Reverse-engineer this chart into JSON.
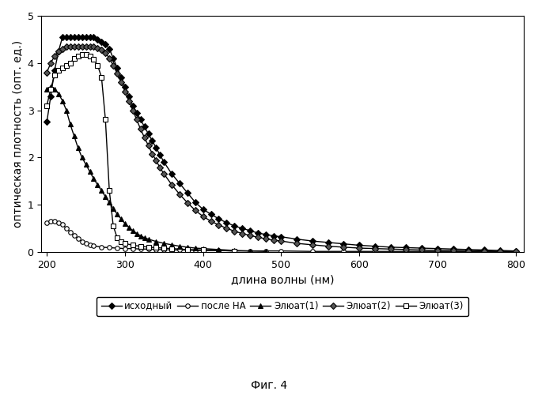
{
  "title": "",
  "xlabel": "длина волны (нм)",
  "ylabel": "оптическая плотность (опт. ед.)",
  "xlim": [
    193,
    810
  ],
  "ylim": [
    0,
    5
  ],
  "yticks": [
    0,
    1,
    2,
    3,
    4,
    5
  ],
  "xticks": [
    200,
    300,
    400,
    500,
    600,
    700,
    800
  ],
  "caption": "Фиг. 4",
  "legend": [
    "исходный",
    "после НА",
    "Элюат(1)",
    "Элюат(2)",
    "Элюат(3)"
  ],
  "series": {
    "ishodny": {
      "x": [
        200,
        205,
        210,
        215,
        220,
        225,
        230,
        235,
        240,
        245,
        250,
        255,
        260,
        265,
        270,
        275,
        280,
        285,
        290,
        295,
        300,
        305,
        310,
        315,
        320,
        325,
        330,
        335,
        340,
        345,
        350,
        360,
        370,
        380,
        390,
        400,
        410,
        420,
        430,
        440,
        450,
        460,
        470,
        480,
        490,
        500,
        520,
        540,
        560,
        580,
        600,
        620,
        640,
        660,
        680,
        700,
        720,
        740,
        760,
        780,
        800
      ],
      "y": [
        2.75,
        3.3,
        3.85,
        4.25,
        4.55,
        4.55,
        4.55,
        4.55,
        4.55,
        4.55,
        4.55,
        4.55,
        4.55,
        4.5,
        4.45,
        4.4,
        4.3,
        4.1,
        3.9,
        3.7,
        3.5,
        3.3,
        3.1,
        2.95,
        2.8,
        2.65,
        2.5,
        2.35,
        2.2,
        2.05,
        1.9,
        1.65,
        1.45,
        1.25,
        1.05,
        0.9,
        0.8,
        0.7,
        0.62,
        0.55,
        0.5,
        0.45,
        0.4,
        0.37,
        0.34,
        0.32,
        0.27,
        0.23,
        0.2,
        0.17,
        0.14,
        0.12,
        0.1,
        0.09,
        0.08,
        0.07,
        0.06,
        0.05,
        0.04,
        0.03,
        0.02
      ],
      "marker": "D",
      "markersize": 4,
      "markerfacecolor": "#000000",
      "markeredgecolor": "#000000",
      "color": "#000000",
      "linestyle": "-",
      "linewidth": 1.0
    },
    "posle_na": {
      "x": [
        200,
        205,
        210,
        215,
        220,
        225,
        230,
        235,
        240,
        245,
        250,
        255,
        260,
        270,
        280,
        290,
        300,
        310,
        320,
        330,
        340,
        350,
        360,
        370,
        380,
        390,
        400,
        420,
        440,
        460,
        480,
        500,
        540,
        580,
        620,
        660,
        700,
        740,
        780,
        800
      ],
      "y": [
        0.62,
        0.65,
        0.65,
        0.62,
        0.58,
        0.5,
        0.42,
        0.35,
        0.28,
        0.22,
        0.18,
        0.15,
        0.13,
        0.1,
        0.09,
        0.08,
        0.07,
        0.07,
        0.06,
        0.06,
        0.05,
        0.05,
        0.04,
        0.04,
        0.04,
        0.03,
        0.03,
        0.03,
        0.02,
        0.02,
        0.02,
        0.02,
        0.01,
        0.01,
        0.01,
        0.01,
        0.01,
        0.01,
        0.01,
        0.01
      ],
      "marker": "o",
      "markersize": 4,
      "markerfacecolor": "white",
      "markeredgecolor": "#000000",
      "color": "#000000",
      "linestyle": "-",
      "linewidth": 1.0
    },
    "elyuat1": {
      "x": [
        200,
        205,
        210,
        215,
        220,
        225,
        230,
        235,
        240,
        245,
        250,
        255,
        260,
        265,
        270,
        275,
        280,
        285,
        290,
        295,
        300,
        305,
        310,
        315,
        320,
        325,
        330,
        340,
        350,
        360,
        370,
        380,
        390,
        400,
        420,
        440,
        460,
        480
      ],
      "y": [
        3.45,
        3.5,
        3.45,
        3.35,
        3.2,
        3.0,
        2.7,
        2.45,
        2.2,
        2.0,
        1.85,
        1.7,
        1.55,
        1.42,
        1.3,
        1.17,
        1.05,
        0.92,
        0.8,
        0.7,
        0.6,
        0.52,
        0.45,
        0.39,
        0.34,
        0.3,
        0.27,
        0.22,
        0.18,
        0.15,
        0.12,
        0.1,
        0.08,
        0.07,
        0.05,
        0.03,
        0.02,
        0.01
      ],
      "marker": "^",
      "markersize": 5,
      "markerfacecolor": "#000000",
      "markeredgecolor": "#000000",
      "color": "#000000",
      "linestyle": "-",
      "linewidth": 1.0
    },
    "elyuat2": {
      "x": [
        200,
        205,
        210,
        215,
        220,
        225,
        230,
        235,
        240,
        245,
        250,
        255,
        260,
        265,
        270,
        275,
        280,
        285,
        290,
        295,
        300,
        305,
        310,
        315,
        320,
        325,
        330,
        335,
        340,
        345,
        350,
        360,
        370,
        380,
        390,
        400,
        410,
        420,
        430,
        440,
        450,
        460,
        470,
        480,
        490,
        500,
        520,
        540,
        560,
        580,
        600,
        620,
        640,
        660,
        680,
        700,
        720,
        740,
        760,
        780,
        800
      ],
      "y": [
        3.8,
        4.0,
        4.15,
        4.25,
        4.3,
        4.35,
        4.35,
        4.35,
        4.35,
        4.35,
        4.35,
        4.35,
        4.35,
        4.32,
        4.28,
        4.22,
        4.1,
        3.95,
        3.78,
        3.6,
        3.4,
        3.2,
        3.0,
        2.8,
        2.6,
        2.42,
        2.25,
        2.08,
        1.93,
        1.78,
        1.65,
        1.42,
        1.22,
        1.04,
        0.88,
        0.75,
        0.65,
        0.57,
        0.5,
        0.44,
        0.39,
        0.35,
        0.31,
        0.28,
        0.25,
        0.23,
        0.18,
        0.15,
        0.12,
        0.1,
        0.08,
        0.07,
        0.06,
        0.05,
        0.04,
        0.03,
        0.03,
        0.02,
        0.02,
        0.01,
        0.01
      ],
      "marker": "D",
      "markersize": 4,
      "markerfacecolor": "#555555",
      "markeredgecolor": "#000000",
      "color": "#000000",
      "linestyle": "-",
      "linewidth": 1.0
    },
    "elyuat3": {
      "x": [
        200,
        205,
        210,
        215,
        220,
        225,
        230,
        235,
        240,
        245,
        250,
        255,
        260,
        265,
        270,
        275,
        280,
        285,
        290,
        295,
        300,
        310,
        320,
        330,
        340,
        350,
        360,
        380,
        400,
        440
      ],
      "y": [
        3.1,
        3.45,
        3.75,
        3.85,
        3.9,
        3.95,
        4.0,
        4.1,
        4.15,
        4.18,
        4.18,
        4.15,
        4.08,
        3.95,
        3.7,
        2.8,
        1.3,
        0.55,
        0.3,
        0.22,
        0.18,
        0.14,
        0.12,
        0.1,
        0.09,
        0.08,
        0.07,
        0.05,
        0.04,
        0.02
      ],
      "marker": "s",
      "markersize": 4,
      "markerfacecolor": "white",
      "markeredgecolor": "#000000",
      "color": "#000000",
      "linestyle": "-",
      "linewidth": 1.0
    }
  }
}
